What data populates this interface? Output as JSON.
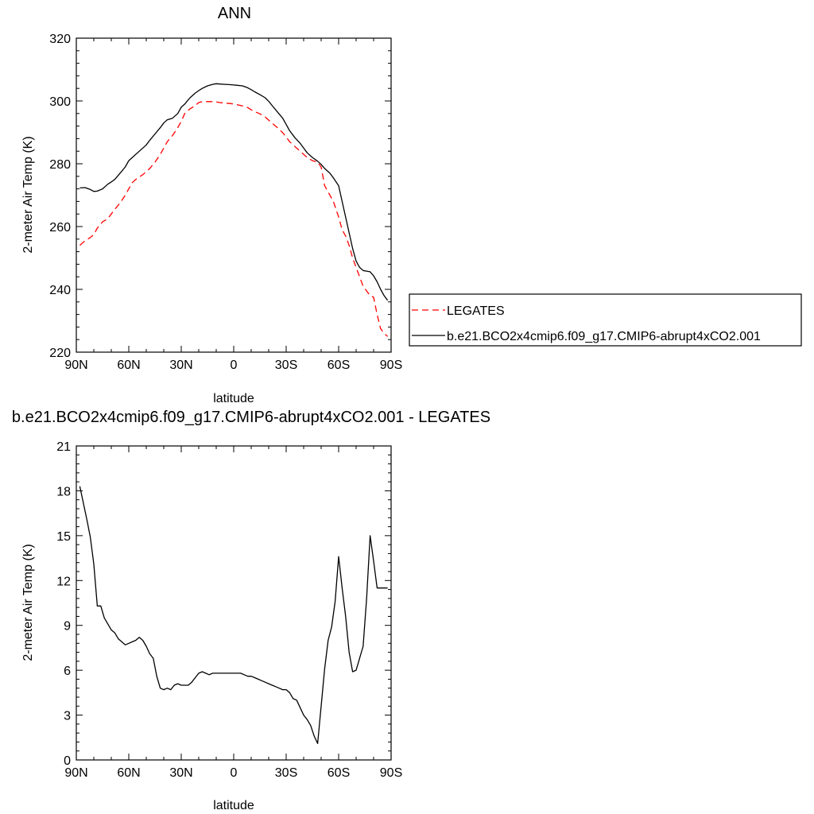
{
  "chart_data": [
    {
      "type": "line",
      "title": "ANN",
      "xlabel": "latitude",
      "ylabel": "2-meter Air Temp (K)",
      "xlim": [
        90,
        -90
      ],
      "ylim": [
        220,
        320
      ],
      "xticks": [
        90,
        60,
        30,
        0,
        -30,
        -60,
        -90
      ],
      "xtick_labels": [
        "90N",
        "60N",
        "30N",
        "0",
        "30S",
        "60S",
        "90S"
      ],
      "yticks": [
        220,
        240,
        260,
        280,
        300,
        320
      ],
      "ytick_labels": [
        "220",
        "240",
        "260",
        "280",
        "300",
        "320"
      ],
      "grid": false,
      "legend_position": "right",
      "series": [
        {
          "name": "LEGATES",
          "color": "#ff0000",
          "dash": "dashed",
          "x": [
            88,
            85,
            82,
            80,
            78,
            75,
            72,
            70,
            68,
            65,
            62,
            60,
            58,
            55,
            52,
            50,
            48,
            45,
            42,
            40,
            38,
            35,
            32,
            30,
            28,
            25,
            22,
            20,
            18,
            15,
            12,
            10,
            8,
            5,
            2,
            0,
            -2,
            -5,
            -8,
            -10,
            -12,
            -15,
            -18,
            -20,
            -22,
            -25,
            -28,
            -30,
            -32,
            -35,
            -38,
            -40,
            -42,
            -45,
            -48,
            -50,
            -52,
            -55,
            -57,
            -60,
            -62,
            -64,
            -66,
            -68,
            -70,
            -72,
            -74,
            -76,
            -78,
            -80,
            -82,
            -84,
            -86,
            -88
          ],
          "y": [
            254,
            255.5,
            256.5,
            257.5,
            259.5,
            261.5,
            262.5,
            264,
            265.5,
            267.5,
            270,
            272,
            274,
            275.5,
            276.5,
            277.5,
            278.5,
            280.5,
            283,
            285,
            287,
            289,
            291.5,
            293.5,
            296,
            297.5,
            298.5,
            299.5,
            299.8,
            299.8,
            299.8,
            299.7,
            299.5,
            299.3,
            299.2,
            299,
            298.8,
            298.4,
            297.9,
            297.2,
            296.6,
            295.9,
            294.9,
            293.9,
            292.9,
            291.5,
            289.9,
            288.5,
            287,
            285.5,
            284,
            283,
            282,
            281,
            280.5,
            279,
            273,
            270,
            268,
            263,
            259,
            257,
            254,
            250,
            247,
            244,
            241,
            239.5,
            238,
            237.5,
            232,
            227.5,
            226,
            225
          ]
        },
        {
          "name": "b.e21.BCO2x4cmip6.f09_g17.CMIP6-abrupt4xCO2.001",
          "color": "#000000",
          "dash": "solid",
          "x": [
            88,
            85,
            82,
            80,
            78,
            75,
            72,
            70,
            68,
            65,
            62,
            60,
            58,
            55,
            52,
            50,
            48,
            45,
            42,
            40,
            38,
            35,
            32,
            30,
            28,
            25,
            22,
            20,
            18,
            15,
            12,
            10,
            8,
            5,
            2,
            0,
            -2,
            -5,
            -8,
            -10,
            -12,
            -15,
            -18,
            -20,
            -22,
            -25,
            -28,
            -30,
            -32,
            -35,
            -38,
            -40,
            -42,
            -45,
            -48,
            -50,
            -52,
            -55,
            -57,
            -60,
            -62,
            -64,
            -66,
            -68,
            -70,
            -72,
            -74,
            -76,
            -78,
            -80,
            -82,
            -84,
            -86,
            -88
          ],
          "y": [
            272.3,
            272.4,
            271.8,
            271.2,
            271.3,
            272,
            273.5,
            274.2,
            275,
            277,
            279,
            281,
            282,
            283.5,
            285,
            286,
            287.5,
            289.5,
            291.5,
            293,
            294,
            294.5,
            296,
            298,
            299,
            301,
            302.5,
            303.3,
            304,
            304.8,
            305.3,
            305.5,
            305.4,
            305.3,
            305.2,
            305.1,
            305,
            304.8,
            304.2,
            303.6,
            302.9,
            302,
            301,
            299.9,
            298.5,
            296.5,
            294.5,
            292.5,
            290.5,
            288.3,
            286.5,
            285,
            283.5,
            282,
            280.8,
            279.8,
            278.5,
            277,
            275.5,
            273,
            268,
            263,
            258,
            253,
            249,
            247,
            246,
            245.8,
            245.6,
            244.3,
            242.4,
            240,
            238,
            236.5
          ]
        }
      ]
    },
    {
      "type": "line",
      "title": "b.e21.BCO2x4cmip6.f09_g17.CMIP6-abrupt4xCO2.001 - LEGATES",
      "xlabel": "latitude",
      "ylabel": "2-meter Air Temp (K)",
      "xlim": [
        90,
        -90
      ],
      "ylim": [
        0,
        21
      ],
      "xticks": [
        90,
        60,
        30,
        0,
        -30,
        -60,
        -90
      ],
      "xtick_labels": [
        "90N",
        "60N",
        "30N",
        "0",
        "30S",
        "60S",
        "90S"
      ],
      "yticks": [
        0,
        3,
        6,
        9,
        12,
        15,
        18,
        21
      ],
      "ytick_labels": [
        "0",
        "3",
        "6",
        "9",
        "12",
        "15",
        "18",
        "21"
      ],
      "grid": false,
      "series": [
        {
          "color": "#000000",
          "dash": "solid",
          "x": [
            88,
            86,
            84,
            82,
            80,
            78,
            76,
            74,
            72,
            70,
            68,
            66,
            64,
            62,
            60,
            58,
            56,
            54,
            52,
            50,
            48,
            46,
            44,
            42,
            40,
            38,
            36,
            34,
            32,
            30,
            28,
            26,
            24,
            22,
            20,
            18,
            16,
            14,
            12,
            10,
            8,
            6,
            4,
            2,
            0,
            -2,
            -4,
            -6,
            -8,
            -10,
            -12,
            -14,
            -16,
            -18,
            -20,
            -22,
            -24,
            -26,
            -28,
            -30,
            -32,
            -34,
            -36,
            -38,
            -40,
            -42,
            -44,
            -46,
            -48,
            -50,
            -52,
            -54,
            -56,
            -58,
            -60,
            -62,
            -64,
            -66,
            -68,
            -70,
            -72,
            -74,
            -76,
            -78,
            -80,
            -82,
            -84,
            -86,
            -88
          ],
          "y": [
            18.3,
            17.2,
            16.1,
            14.9,
            13.1,
            10.3,
            10.3,
            9.5,
            9.1,
            8.7,
            8.5,
            8.1,
            7.9,
            7.7,
            7.8,
            7.9,
            8.0,
            8.2,
            8.0,
            7.6,
            7.1,
            6.8,
            5.6,
            4.8,
            4.7,
            4.8,
            4.7,
            5.0,
            5.1,
            5.0,
            5.0,
            5.0,
            5.2,
            5.5,
            5.8,
            5.9,
            5.8,
            5.7,
            5.8,
            5.8,
            5.8,
            5.8,
            5.8,
            5.8,
            5.8,
            5.8,
            5.8,
            5.7,
            5.6,
            5.6,
            5.5,
            5.4,
            5.3,
            5.2,
            5.1,
            5.0,
            4.9,
            4.8,
            4.7,
            4.7,
            4.5,
            4.1,
            4.0,
            3.5,
            3.0,
            2.7,
            2.3,
            1.6,
            1.1,
            3.6,
            6.1,
            8.0,
            8.9,
            10.6,
            13.6,
            11.5,
            9.6,
            7.2,
            5.9,
            6.0,
            6.8,
            7.6,
            10.8,
            15.0,
            13.3,
            11.5,
            11.5,
            11.5,
            11.5
          ]
        }
      ]
    }
  ]
}
